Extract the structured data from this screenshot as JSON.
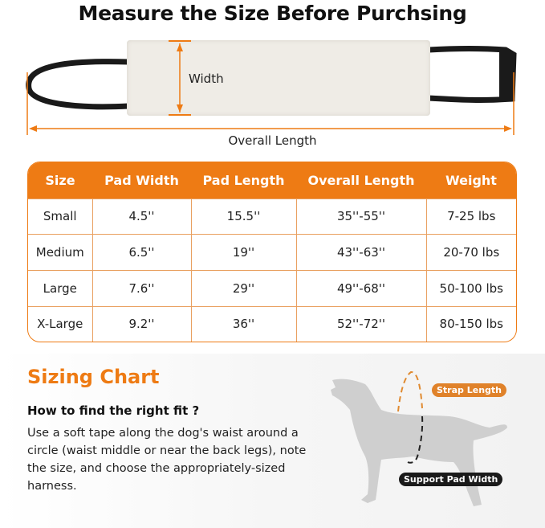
{
  "title": "Measure the Size Before Purchsing",
  "diagram": {
    "width_label": "Width",
    "overall_length_label": "Overall Length",
    "accent_color": "#ee7b14"
  },
  "table": {
    "headers": [
      "Size",
      "Pad Width",
      "Pad Length",
      "Overall Length",
      "Weight"
    ],
    "rows": [
      [
        "Small",
        "4.5''",
        "15.5''",
        "35''-55''",
        "7-25 lbs"
      ],
      [
        "Medium",
        "6.5''",
        "19''",
        "43''-63''",
        "20-70 lbs"
      ],
      [
        "Large",
        "7.6''",
        "29''",
        "49''-68''",
        "50-100 lbs"
      ],
      [
        "X-Large",
        "9.2''",
        "36''",
        "52''-72''",
        "80-150 lbs"
      ]
    ]
  },
  "sizing": {
    "heading": "Sizing Chart",
    "subheading": "How to find the right fit ?",
    "description": "Use a soft tape along the dog's waist around a circle (waist middle or near the back legs), note the size, and choose the appropriately-sized harness.",
    "strap_length_tag": "Strap Length",
    "support_pad_width_tag": "Support Pad Width"
  }
}
